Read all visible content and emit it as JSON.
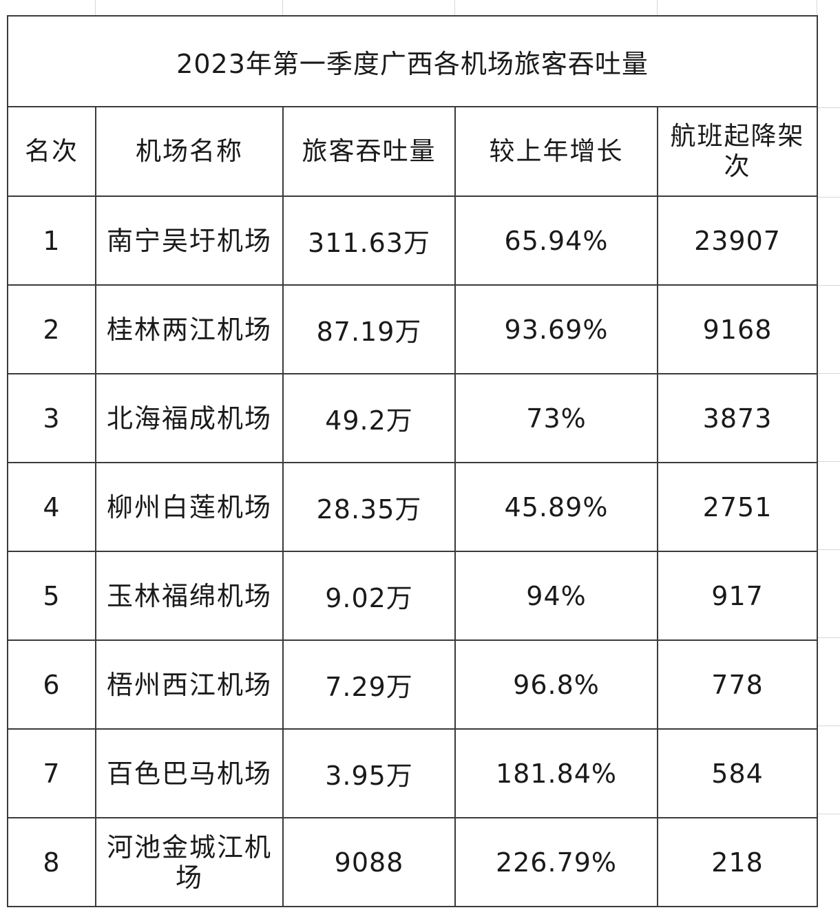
{
  "table": {
    "title": "2023年第一季度广西各机场旅客吞吐量",
    "headers": [
      "名次",
      "机场名称",
      "旅客吞吐量",
      "较上年增长",
      "航班起降架次"
    ],
    "rows": [
      {
        "rank": "1",
        "name": "南宁吴圩机场",
        "passengers": "311.63万",
        "growth": "65.94%",
        "flights": "23907"
      },
      {
        "rank": "2",
        "name": "桂林两江机场",
        "passengers": "87.19万",
        "growth": "93.69%",
        "flights": "9168"
      },
      {
        "rank": "3",
        "name": "北海福成机场",
        "passengers": "49.2万",
        "growth": "73%",
        "flights": "3873"
      },
      {
        "rank": "4",
        "name": "柳州白莲机场",
        "passengers": "28.35万",
        "growth": "45.89%",
        "flights": "2751"
      },
      {
        "rank": "5",
        "name": "玉林福绵机场",
        "passengers": "9.02万",
        "growth": "94%",
        "flights": "917"
      },
      {
        "rank": "6",
        "name": "梧州西江机场",
        "passengers": "7.29万",
        "growth": "96.8%",
        "flights": "778"
      },
      {
        "rank": "7",
        "name": "百色巴马机场",
        "passengers": "3.95万",
        "growth": "181.84%",
        "flights": "584"
      },
      {
        "rank": "8",
        "name": "河池金城江机场",
        "passengers": "9088",
        "growth": "226.79%",
        "flights": "218"
      }
    ]
  }
}
